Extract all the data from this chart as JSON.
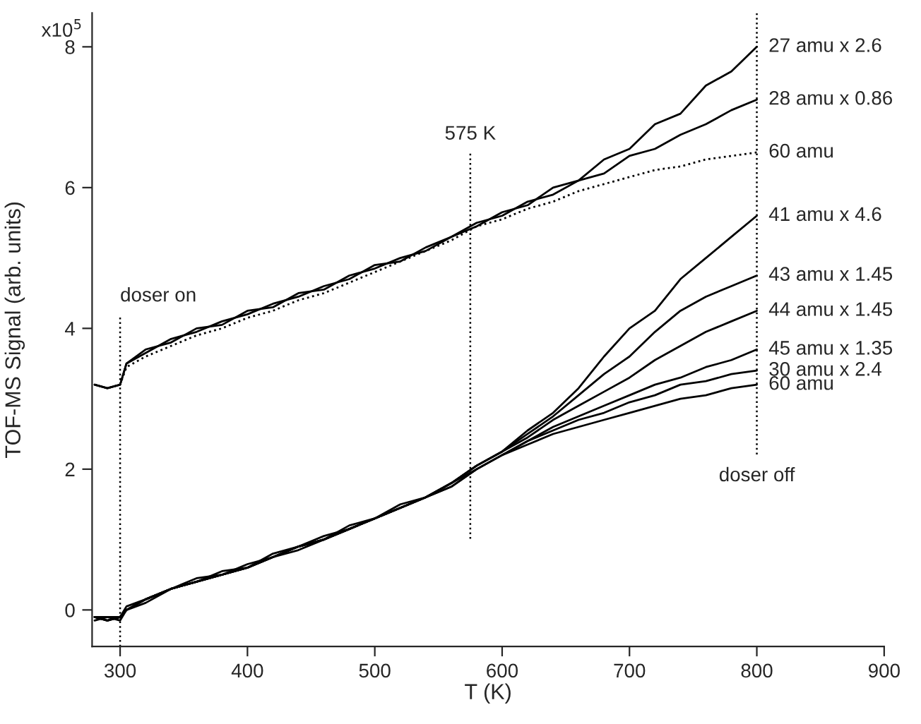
{
  "chart_data": {
    "type": "line",
    "xlabel": "T (K)",
    "ylabel": "TOF-MS Signal (arb. units)",
    "x": [
      280,
      290,
      300,
      305,
      320,
      340,
      360,
      380,
      400,
      420,
      440,
      460,
      480,
      500,
      520,
      540,
      560,
      580,
      600,
      620,
      640,
      660,
      680,
      700,
      720,
      740,
      760,
      780,
      800
    ],
    "series": [
      {
        "name": "27 amu x 2.6",
        "color": "#000000",
        "values": [
          3.2,
          3.15,
          3.2,
          3.5,
          3.7,
          3.8,
          4.0,
          4.05,
          4.25,
          4.3,
          4.5,
          4.55,
          4.75,
          4.85,
          5.0,
          5.1,
          5.3,
          5.45,
          5.65,
          5.75,
          6.0,
          6.1,
          6.4,
          6.55,
          6.9,
          7.05,
          7.45,
          7.65,
          8.0
        ]
      },
      {
        "name": "28 amu x 0.86",
        "color": "#000000",
        "values": [
          3.2,
          3.15,
          3.2,
          3.5,
          3.65,
          3.85,
          3.95,
          4.1,
          4.2,
          4.35,
          4.45,
          4.6,
          4.7,
          4.9,
          4.95,
          5.15,
          5.3,
          5.5,
          5.6,
          5.8,
          5.9,
          6.1,
          6.2,
          6.45,
          6.55,
          6.75,
          6.9,
          7.1,
          7.25
        ]
      },
      {
        "name": "60 amu",
        "color": "#000000",
        "line_style": "dotted",
        "values": [
          3.2,
          3.15,
          3.2,
          3.45,
          3.6,
          3.75,
          3.9,
          4.0,
          4.15,
          4.25,
          4.4,
          4.5,
          4.65,
          4.8,
          4.95,
          5.1,
          5.25,
          5.45,
          5.55,
          5.7,
          5.8,
          5.95,
          6.05,
          6.15,
          6.25,
          6.3,
          6.4,
          6.45,
          6.5
        ]
      },
      {
        "name": "41 amu x 4.6",
        "color": "#000000",
        "values": [
          -0.1,
          -0.15,
          -0.1,
          0.0,
          0.15,
          0.3,
          0.4,
          0.5,
          0.6,
          0.75,
          0.9,
          1.0,
          1.15,
          1.3,
          1.45,
          1.6,
          1.8,
          2.05,
          2.25,
          2.55,
          2.8,
          3.15,
          3.6,
          4.0,
          4.25,
          4.7,
          5.0,
          5.3,
          5.6
        ]
      },
      {
        "name": "43 amu x 1.45",
        "color": "#000000",
        "values": [
          -0.1,
          -0.1,
          -0.1,
          0.0,
          0.15,
          0.3,
          0.45,
          0.5,
          0.65,
          0.75,
          0.9,
          1.05,
          1.15,
          1.3,
          1.45,
          1.6,
          1.8,
          2.05,
          2.25,
          2.5,
          2.75,
          3.05,
          3.35,
          3.6,
          3.95,
          4.25,
          4.45,
          4.6,
          4.75
        ]
      },
      {
        "name": "44 amu x 1.45",
        "color": "#000000",
        "values": [
          -0.15,
          -0.1,
          -0.1,
          0.05,
          0.15,
          0.3,
          0.4,
          0.55,
          0.6,
          0.8,
          0.9,
          1.0,
          1.2,
          1.3,
          1.5,
          1.6,
          1.8,
          2.05,
          2.25,
          2.45,
          2.7,
          2.9,
          3.1,
          3.3,
          3.55,
          3.75,
          3.95,
          4.1,
          4.25
        ]
      },
      {
        "name": "45 amu x 1.35",
        "color": "#000000",
        "values": [
          -0.1,
          -0.15,
          -0.1,
          0.0,
          0.15,
          0.3,
          0.4,
          0.5,
          0.6,
          0.75,
          0.9,
          1.0,
          1.15,
          1.3,
          1.45,
          1.6,
          1.8,
          2.0,
          2.2,
          2.4,
          2.6,
          2.75,
          2.9,
          3.05,
          3.2,
          3.3,
          3.45,
          3.55,
          3.7
        ]
      },
      {
        "name": "30 amu x 2.4",
        "color": "#000000",
        "values": [
          -0.1,
          -0.1,
          -0.15,
          0.0,
          0.1,
          0.3,
          0.4,
          0.5,
          0.6,
          0.75,
          0.85,
          1.0,
          1.15,
          1.3,
          1.45,
          1.6,
          1.75,
          2.0,
          2.2,
          2.4,
          2.55,
          2.7,
          2.8,
          2.95,
          3.05,
          3.2,
          3.25,
          3.35,
          3.4
        ]
      },
      {
        "name": "60 amu",
        "color": "#000000",
        "values": [
          -0.1,
          -0.15,
          -0.1,
          0.0,
          0.15,
          0.3,
          0.4,
          0.5,
          0.6,
          0.75,
          0.9,
          1.0,
          1.15,
          1.3,
          1.45,
          1.6,
          1.75,
          2.0,
          2.2,
          2.35,
          2.5,
          2.6,
          2.7,
          2.8,
          2.9,
          3.0,
          3.05,
          3.15,
          3.2
        ]
      }
    ],
    "xlim": [
      278,
      900
    ],
    "xticks": [
      300,
      400,
      500,
      600,
      700,
      800,
      900
    ],
    "ylim": [
      -0.52,
      8.48
    ],
    "yticks": [
      0,
      2,
      4,
      6,
      8
    ],
    "annotations": [
      "x10$^{5}$"
    ],
    "ref_lines": [
      {
        "axis": "x",
        "value": 300,
        "label": "doser on",
        "line_style": "dotted"
      },
      {
        "axis": "x",
        "value": 575,
        "label": "575 K",
        "line_style": "dotted"
      },
      {
        "axis": "x",
        "value": 800,
        "label": "doser off",
        "line_style": "dotted"
      }
    ],
    "grid": false,
    "marker": "none",
    "line_style": "solid"
  }
}
